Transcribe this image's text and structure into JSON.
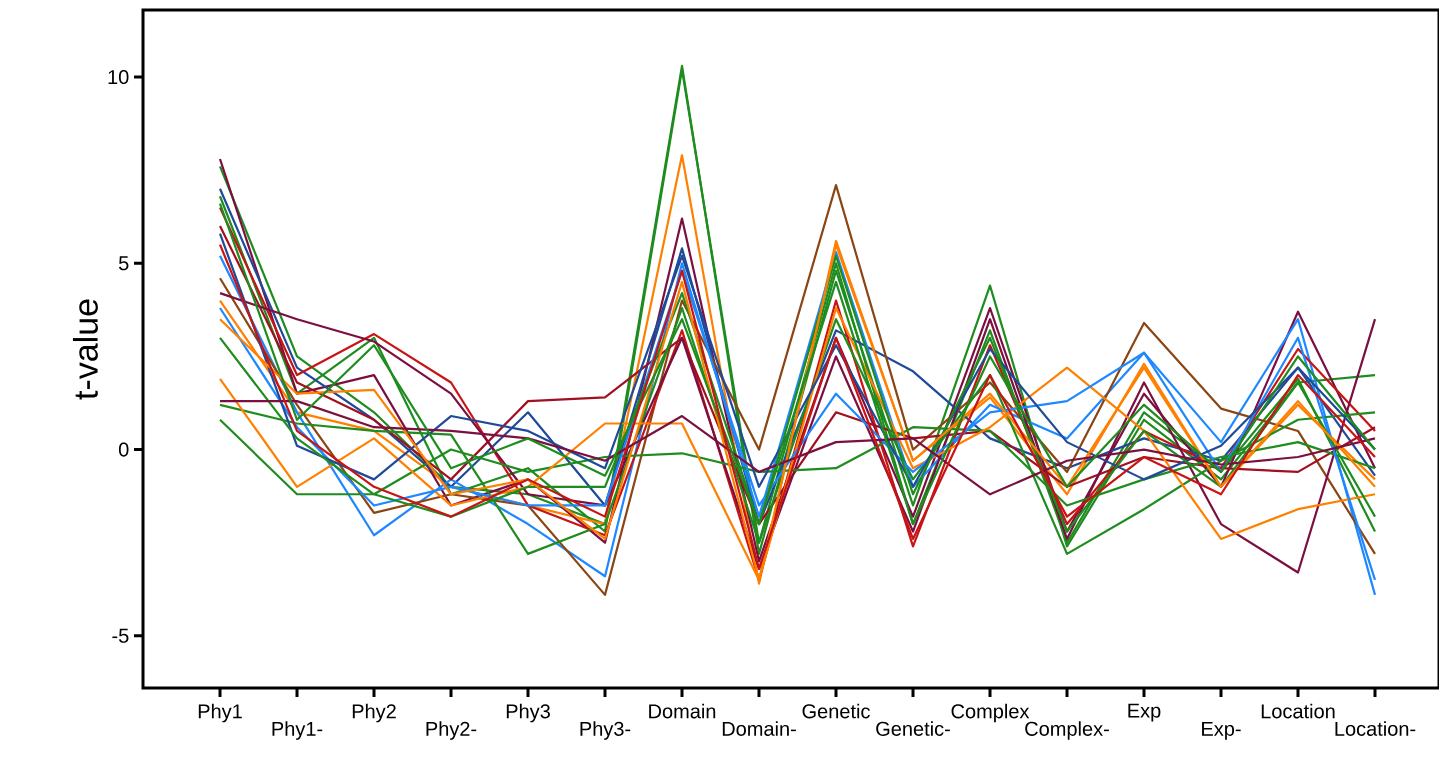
{
  "chart_data": {
    "type": "line",
    "ylabel": "t-value",
    "categories": [
      "Phy1",
      "Phy1-",
      "Phy2",
      "Phy2-",
      "Phy3",
      "Phy3-",
      "Domain",
      "Domain-",
      "Genetic",
      "Genetic-",
      "Complex",
      "Complex-",
      "Exp",
      "Exp-",
      "Location",
      "Location-"
    ],
    "ylim": [
      -6.4,
      11.8
    ],
    "yticks": [
      -5,
      0,
      5,
      10
    ],
    "series": [
      {
        "color": "#1e8c1e",
        "values": [
          7.6,
          2.5,
          1.0,
          -1.0,
          -1.2,
          -2.0,
          10.3,
          -2.8,
          4.8,
          -1.5,
          4.4,
          -2.6,
          0.8,
          -0.8,
          1.8,
          2.0
        ]
      },
      {
        "color": "#1e8c1e",
        "values": [
          6.8,
          1.5,
          3.0,
          -1.2,
          -0.5,
          -2.2,
          10.2,
          -2.5,
          5.0,
          -2.0,
          3.2,
          -2.5,
          1.0,
          -0.6,
          1.9,
          -2.2
        ]
      },
      {
        "color": "#ff8000",
        "values": [
          4.0,
          1.0,
          0.5,
          -1.0,
          -1.5,
          -2.0,
          7.9,
          -3.6,
          5.6,
          -0.3,
          1.4,
          -1.2,
          2.3,
          -1.0,
          1.2,
          -0.8
        ]
      },
      {
        "color": "#7b1040",
        "values": [
          7.8,
          1.5,
          2.0,
          -1.5,
          -0.8,
          -2.5,
          6.2,
          -3.0,
          3.0,
          -1.8,
          3.8,
          -2.2,
          1.5,
          -1.0,
          3.7,
          -0.5
        ]
      },
      {
        "color": "#1f4a99",
        "values": [
          7.0,
          2.2,
          0.8,
          -1.0,
          1.0,
          -1.5,
          5.4,
          -2.0,
          3.2,
          2.1,
          0.3,
          -0.5,
          0.3,
          -0.3,
          2.2,
          -0.7
        ]
      },
      {
        "color": "#1e88ff",
        "values": [
          5.2,
          1.0,
          -2.3,
          -0.8,
          -2.0,
          -3.4,
          5.0,
          -1.8,
          5.3,
          -1.0,
          1.2,
          0.3,
          2.6,
          0.2,
          3.5,
          -3.9
        ]
      },
      {
        "color": "#8b4513",
        "values": [
          4.6,
          1.2,
          -1.7,
          -1.2,
          -1.5,
          -3.9,
          4.0,
          0.0,
          7.1,
          0.0,
          1.8,
          -0.6,
          3.4,
          1.1,
          0.5,
          -2.8
        ]
      },
      {
        "color": "#c81414",
        "values": [
          6.5,
          2.0,
          3.1,
          1.8,
          -1.5,
          -2.3,
          3.2,
          -3.5,
          4.0,
          -2.6,
          2.8,
          -2.0,
          0.5,
          -0.5,
          2.7,
          0.5
        ]
      },
      {
        "color": "#a01020",
        "values": [
          6.0,
          1.8,
          0.8,
          -0.8,
          1.3,
          1.4,
          3.0,
          -2.0,
          1.0,
          0.3,
          0.5,
          -1.0,
          -0.2,
          -0.5,
          -0.6,
          0.6
        ]
      },
      {
        "color": "#7b1040",
        "values": [
          4.2,
          3.5,
          2.9,
          1.5,
          -1.2,
          -1.5,
          3.0,
          -3.2,
          2.5,
          -2.2,
          3.5,
          -2.4,
          1.8,
          -2.0,
          -3.3,
          3.5
        ]
      },
      {
        "color": "#1e8c1e",
        "values": [
          1.2,
          0.7,
          0.5,
          0.4,
          -2.8,
          -2.0,
          3.8,
          -2.5,
          3.5,
          -0.8,
          2.0,
          -2.8,
          -1.6,
          -0.3,
          0.8,
          1.0
        ]
      },
      {
        "color": "#1e8c1e",
        "values": [
          0.8,
          -1.2,
          -1.2,
          0.0,
          -0.6,
          -0.2,
          -0.1,
          -0.6,
          -0.5,
          0.6,
          0.5,
          -1.5,
          -0.8,
          -0.2,
          0.2,
          -0.5
        ]
      },
      {
        "color": "#ff8000",
        "values": [
          1.9,
          -1.0,
          0.3,
          -1.5,
          -1.0,
          0.7,
          0.7,
          -3.5,
          3.8,
          -0.5,
          0.6,
          2.2,
          0.5,
          -2.4,
          -1.6,
          -1.2
        ]
      },
      {
        "color": "#1e88ff",
        "values": [
          3.8,
          0.6,
          -1.5,
          -1.0,
          -1.5,
          -1.5,
          4.8,
          -1.5,
          1.5,
          -0.6,
          1.0,
          1.3,
          2.6,
          -0.6,
          3.0,
          -3.5
        ]
      },
      {
        "color": "#1f4a99",
        "values": [
          5.8,
          0.1,
          -0.8,
          0.9,
          0.5,
          -0.5,
          5.2,
          -1.0,
          2.8,
          -1.0,
          2.7,
          0.2,
          -0.8,
          0.1,
          2.2,
          0.0
        ]
      },
      {
        "color": "#1e8c1e",
        "values": [
          3.0,
          0.3,
          -1.2,
          -1.8,
          -1.0,
          -1.0,
          4.2,
          -2.0,
          5.2,
          -1.2,
          3.0,
          -2.2,
          0.5,
          -1.0,
          1.8,
          -1.8
        ]
      },
      {
        "color": "#ff8000",
        "values": [
          3.5,
          1.5,
          1.6,
          -1.2,
          -0.8,
          -2.4,
          4.5,
          -3.5,
          5.5,
          -0.3,
          1.5,
          -1.0,
          2.2,
          -1.0,
          1.3,
          -1.0
        ]
      },
      {
        "color": "#7b1040",
        "values": [
          1.3,
          1.3,
          0.6,
          0.5,
          0.3,
          -0.3,
          0.9,
          -0.6,
          0.2,
          0.3,
          -1.2,
          -0.3,
          0.0,
          -0.4,
          -0.2,
          0.3
        ]
      },
      {
        "color": "#1e8c1e",
        "values": [
          6.6,
          0.8,
          2.8,
          -0.5,
          0.3,
          -0.7,
          3.5,
          -2.0,
          4.5,
          -2.0,
          2.5,
          -1.0,
          1.2,
          -0.6,
          2.5,
          0.0
        ]
      },
      {
        "color": "#c81414",
        "values": [
          5.5,
          0.5,
          -1.0,
          -1.8,
          -0.8,
          -1.8,
          4.8,
          -3.2,
          3.0,
          -2.4,
          2.0,
          -1.8,
          -0.2,
          -1.2,
          2.0,
          -0.2
        ]
      }
    ]
  }
}
